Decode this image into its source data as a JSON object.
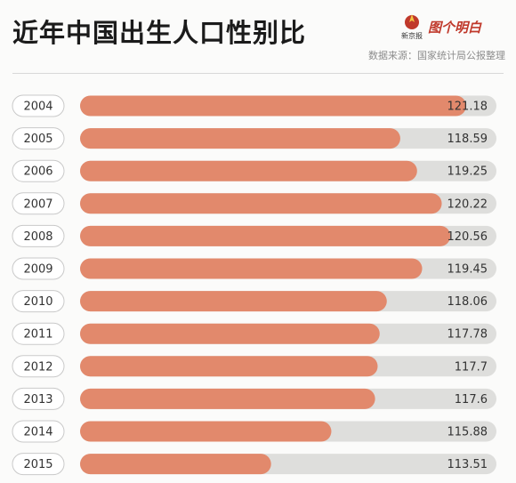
{
  "header": {
    "title": "近年中国出生人口性别比",
    "brand_small": "新京报",
    "brand_text": "图个明白",
    "source": "数据来源：国家统计局公报整理"
  },
  "colors": {
    "bar_fill": "#e2896c",
    "track": "#dededc",
    "pill_border": "#c9c9c9",
    "logo_red": "#c0392b"
  },
  "chart_data": {
    "type": "bar",
    "orientation": "horizontal",
    "title": "近年中国出生人口性别比",
    "categories": [
      "2004",
      "2005",
      "2006",
      "2007",
      "2008",
      "2009",
      "2010",
      "2011",
      "2012",
      "2013",
      "2014",
      "2015"
    ],
    "values": [
      121.18,
      118.59,
      119.25,
      120.22,
      120.56,
      119.45,
      118.06,
      117.78,
      117.7,
      117.6,
      115.88,
      113.51
    ],
    "value_labels": [
      "121.18",
      "118.59",
      "119.25",
      "120.22",
      "120.56",
      "119.45",
      "118.06",
      "117.78",
      "117.7",
      "117.6",
      "115.88",
      "113.51"
    ],
    "xlim": [
      106,
      122.3
    ],
    "grid": false,
    "legend": "none"
  }
}
